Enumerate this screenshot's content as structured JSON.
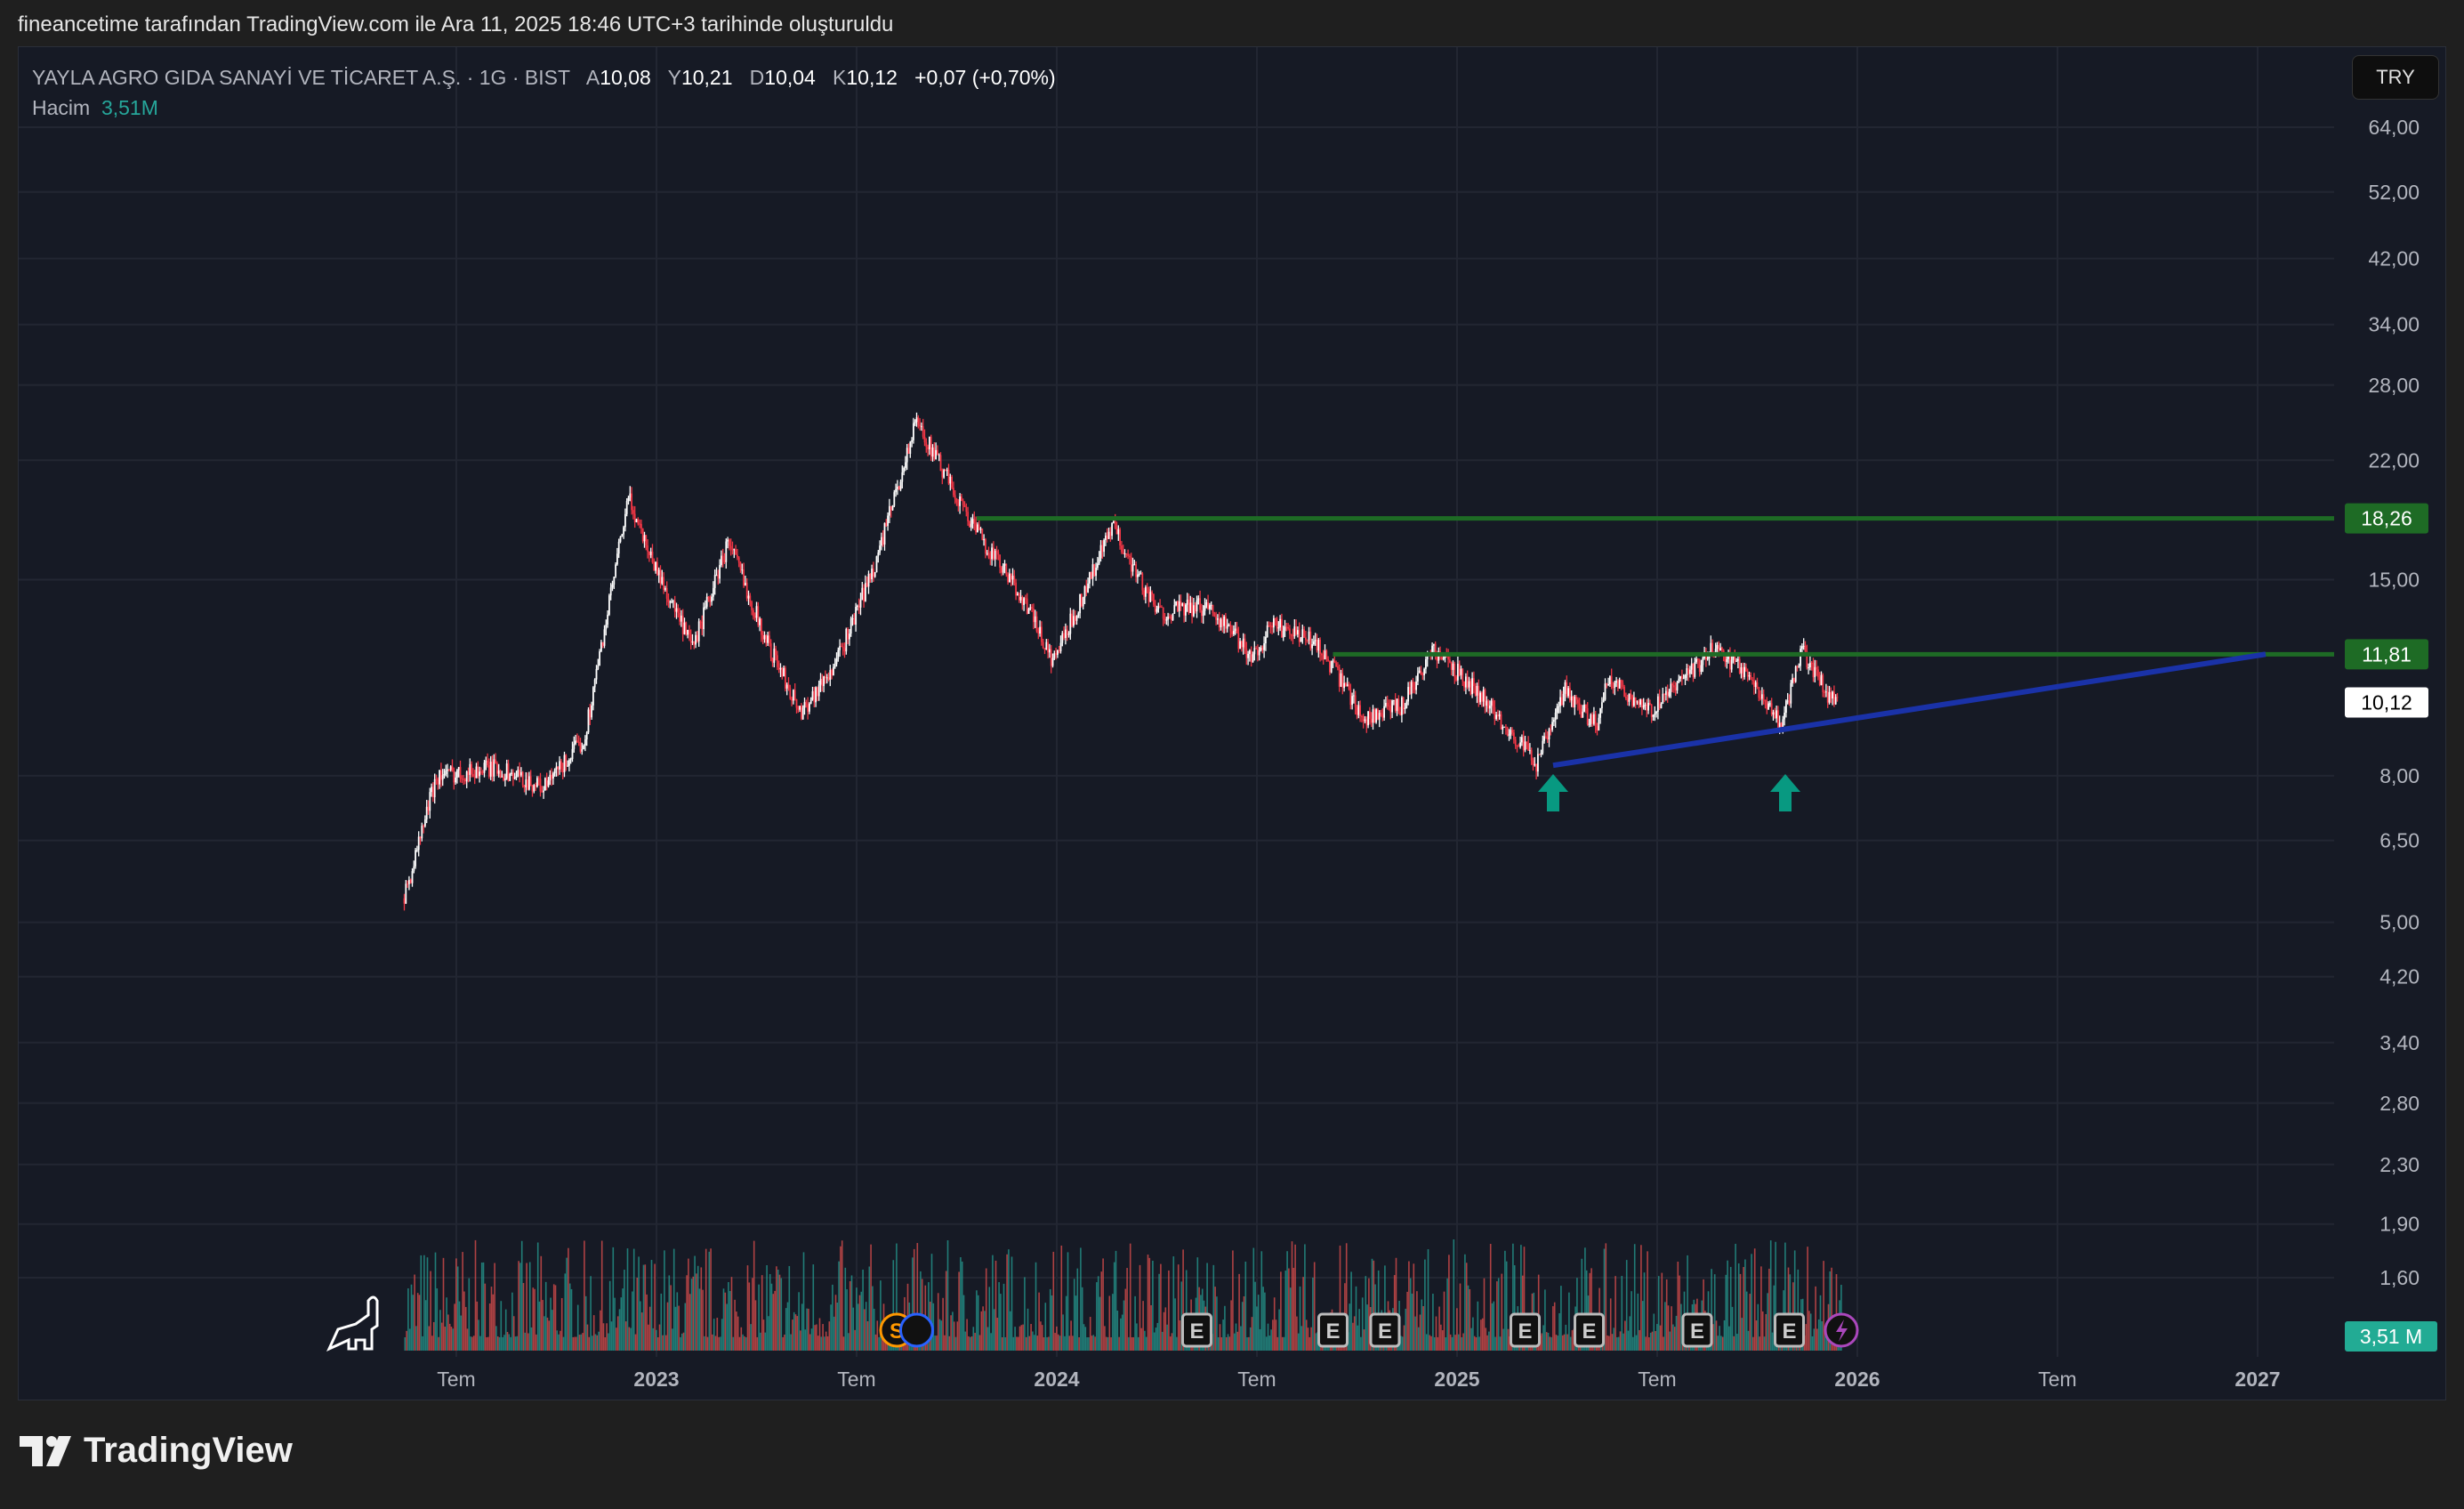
{
  "header": {
    "caption": "fineancetime tarafından TradingView.com ile Ara 11, 2025 18:46 UTC+3 tarihinde oluşturuldu"
  },
  "legend": {
    "symbol": "YAYLA AGRO GIDA SANAYİ VE TİCARET A.Ş. · 1G · BIST",
    "open_label": "A",
    "open": "10,08",
    "high_label": "Y",
    "high": "10,21",
    "low_label": "D",
    "low": "10,04",
    "close_label": "K",
    "close": "10,12",
    "change": "+0,07 (+0,70%)",
    "volume_label": "Hacim",
    "volume": "3,51M"
  },
  "currency": "TRY",
  "brand": "TradingView",
  "colors": {
    "up": "#ffffff",
    "down": "#f23645",
    "line_green": "#1e6b25",
    "trend": "#1a32a8",
    "arrow": "#089981",
    "vol_up": "#26a69a",
    "vol_down": "#ef5350"
  },
  "chart_data": {
    "type": "candlestick",
    "price_scale": "log",
    "y_ticks": [
      "64,00",
      "52,00",
      "42,00",
      "34,00",
      "28,00",
      "22,00",
      "15,00",
      "8,00",
      "6,50",
      "5,00",
      "4,20",
      "3,40",
      "2,80",
      "2,30",
      "1,90",
      "1,60"
    ],
    "y_tick_values": [
      64,
      52,
      42,
      34,
      28,
      22,
      15,
      8,
      6.5,
      5,
      4.2,
      3.4,
      2.8,
      2.3,
      1.9,
      1.6
    ],
    "x_ticks": [
      {
        "label": "Tem",
        "t": 2022.5
      },
      {
        "label": "2023",
        "t": 2023.0
      },
      {
        "label": "Tem",
        "t": 2023.5
      },
      {
        "label": "2024",
        "t": 2024.0
      },
      {
        "label": "Tem",
        "t": 2024.5
      },
      {
        "label": "2025",
        "t": 2025.0
      },
      {
        "label": "Tem",
        "t": 2025.5
      },
      {
        "label": "2026",
        "t": 2026.0
      },
      {
        "label": "Tem",
        "t": 2026.5
      },
      {
        "label": "2027",
        "t": 2027.0
      }
    ],
    "price_path": [
      [
        2022.37,
        5.4
      ],
      [
        2022.45,
        8.0
      ],
      [
        2022.6,
        8.2
      ],
      [
        2022.72,
        7.7
      ],
      [
        2022.82,
        9.0
      ],
      [
        2022.93,
        19.5
      ],
      [
        2023.0,
        15.5
      ],
      [
        2023.09,
        12.0
      ],
      [
        2023.18,
        17.0
      ],
      [
        2023.27,
        12.5
      ],
      [
        2023.36,
        9.8
      ],
      [
        2023.45,
        11.5
      ],
      [
        2023.55,
        16.0
      ],
      [
        2023.65,
        25.0
      ],
      [
        2023.72,
        21.0
      ],
      [
        2023.8,
        17.5
      ],
      [
        2023.92,
        14.0
      ],
      [
        2023.99,
        11.5
      ],
      [
        2024.07,
        14.5
      ],
      [
        2024.14,
        17.8
      ],
      [
        2024.25,
        13.5
      ],
      [
        2024.38,
        13.8
      ],
      [
        2024.49,
        11.7
      ],
      [
        2024.54,
        13.0
      ],
      [
        2024.65,
        12.2
      ],
      [
        2024.77,
        9.6
      ],
      [
        2024.86,
        10.0
      ],
      [
        2024.94,
        12.0
      ],
      [
        2025.05,
        10.5
      ],
      [
        2025.2,
        8.3
      ],
      [
        2025.27,
        10.5
      ],
      [
        2025.35,
        9.4
      ],
      [
        2025.38,
        11.0
      ],
      [
        2025.48,
        9.8
      ],
      [
        2025.56,
        10.8
      ],
      [
        2025.64,
        12.0
      ],
      [
        2025.72,
        11.2
      ],
      [
        2025.81,
        9.4
      ],
      [
        2025.86,
        12.0
      ],
      [
        2025.92,
        10.5
      ],
      [
        2025.95,
        10.12
      ]
    ],
    "horizontal_lines": [
      {
        "price": 18.26,
        "label": "18,26",
        "from": 2023.8
      },
      {
        "price": 11.81,
        "label": "11,81",
        "from": 2024.69
      }
    ],
    "trendline": {
      "from": [
        2025.24,
        8.27
      ],
      "to": [
        2027.02,
        11.81
      ]
    },
    "arrows": [
      {
        "t": 2025.24,
        "direction": "up"
      },
      {
        "t": 2025.82,
        "direction": "up"
      }
    ],
    "last_price": {
      "value": 10.12,
      "label": "10,12"
    },
    "volume_label": "3,51 M",
    "events": [
      {
        "t": 2023.6,
        "type": "S"
      },
      {
        "t": 2023.65,
        "type": "D"
      },
      {
        "t": 2024.35,
        "type": "E"
      },
      {
        "t": 2024.69,
        "type": "E"
      },
      {
        "t": 2024.82,
        "type": "E"
      },
      {
        "t": 2025.17,
        "type": "E"
      },
      {
        "t": 2025.33,
        "type": "E"
      },
      {
        "t": 2025.6,
        "type": "E"
      },
      {
        "t": 2025.83,
        "type": "E"
      },
      {
        "t": 2025.96,
        "type": "flash"
      }
    ]
  }
}
